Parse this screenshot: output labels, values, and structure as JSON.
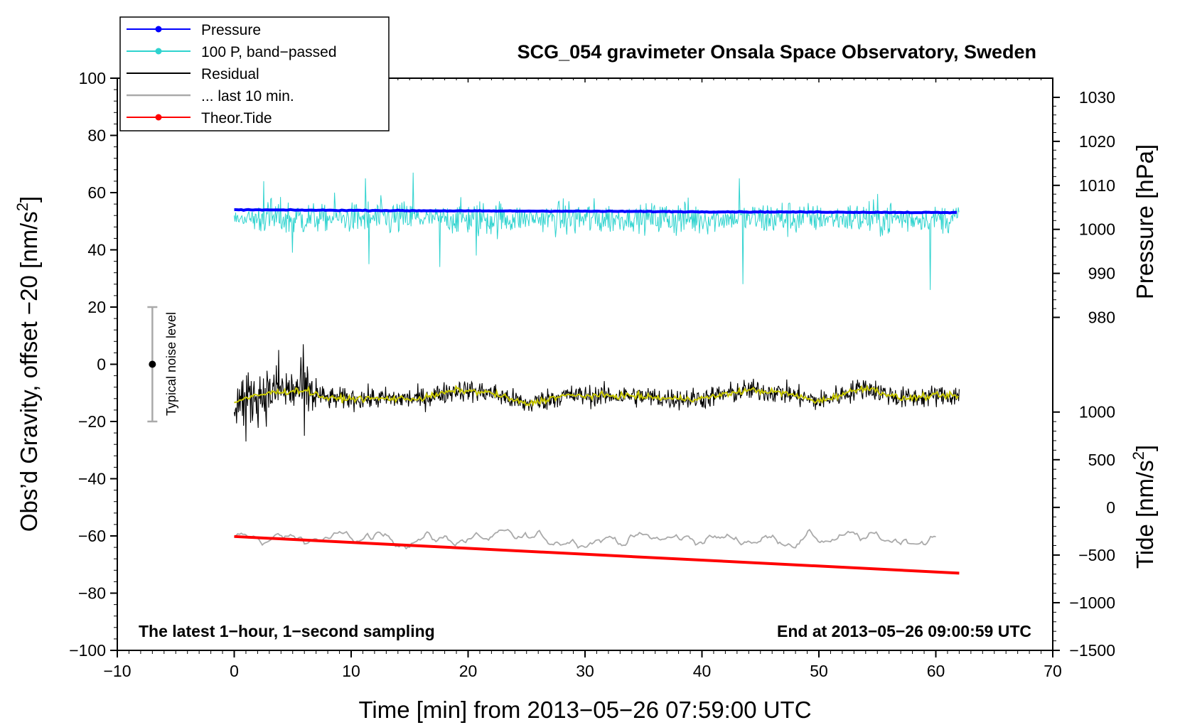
{
  "chart_data": {
    "type": "line",
    "title": "SCG_054 gravimeter Onsala Space Observatory, Sweden",
    "xlabel": "Time [min] from 2013−05−26 07:59:00 UTC",
    "ylabel_left": "Obs’d Gravity, offset −20 [nm/s",
    "ylabel_left_unit_sup": "2",
    "ylabel_left_close": "]",
    "ylabel_right_pressure": "Pressure [hPa]",
    "ylabel_right_tide": "Tide [nm/s",
    "ylabel_right_tide_sup": "2",
    "ylabel_right_tide_close": "]",
    "xlim": [
      -10,
      70
    ],
    "ylim_left": [
      -100,
      100
    ],
    "x_ticks": [
      "−10",
      "0",
      "10",
      "20",
      "30",
      "40",
      "50",
      "60",
      "70"
    ],
    "x_tick_values": [
      -10,
      0,
      10,
      20,
      30,
      40,
      50,
      60,
      70
    ],
    "y_left_ticks": [
      "100",
      "80",
      "60",
      "40",
      "20",
      "0",
      "−20",
      "−40",
      "−60",
      "−80",
      "−100"
    ],
    "y_left_tick_values": [
      100,
      80,
      60,
      40,
      20,
      0,
      -20,
      -40,
      -60,
      -80,
      -100
    ],
    "pressure_axis": {
      "ticks": [
        "1030",
        "1020",
        "1010",
        "1000",
        "990",
        "980"
      ],
      "tick_values": [
        1030,
        1020,
        1010,
        1000,
        990,
        980
      ],
      "gravity_equiv": [
        [
          1030,
          93.3
        ],
        [
          980,
          16.4
        ]
      ]
    },
    "tide_axis": {
      "ticks": [
        "1000",
        "500",
        "0",
        "−500",
        "−1000",
        "−1500"
      ],
      "tick_values": [
        1000,
        500,
        0,
        -500,
        -1000,
        -1500
      ],
      "gravity_equiv": [
        [
          1000,
          -16.7
        ],
        [
          -1500,
          -100
        ]
      ]
    },
    "legend": [
      {
        "label": "Pressure",
        "color": "#0000ff",
        "marker": true
      },
      {
        "label": "100 P, band−passed",
        "color": "#2fd3cf",
        "marker": true
      },
      {
        "label": "Residual",
        "color": "#000000",
        "marker": false
      },
      {
        "label": "... last 10 min.",
        "color": "#aaaaaa",
        "marker": false
      },
      {
        "label": "Theor.Tide",
        "color": "#ff0000",
        "marker": true
      }
    ],
    "series": [
      {
        "name": "Pressure",
        "color": "#0000ff",
        "x": [
          0,
          10,
          20,
          30,
          40,
          50,
          62
        ],
        "values": [
          54.0,
          53.8,
          53.6,
          53.5,
          53.3,
          53.2,
          53.0
        ]
      },
      {
        "name": "100 P, band-passed",
        "color": "#2fd3cf",
        "x_range": [
          0,
          62
        ],
        "center": 51,
        "spikes": [
          [
            2.5,
            64
          ],
          [
            3.2,
            58
          ],
          [
            5.0,
            39
          ],
          [
            8.6,
            60
          ],
          [
            11.2,
            65
          ],
          [
            11.5,
            35
          ],
          [
            15.3,
            67
          ],
          [
            17.6,
            34
          ],
          [
            20.7,
            38
          ],
          [
            43.2,
            65
          ],
          [
            43.5,
            28
          ],
          [
            59.5,
            26
          ]
        ]
      },
      {
        "name": "Residual",
        "color": "#000000",
        "x_range": [
          0,
          62
        ],
        "center": -11,
        "extremes": [
          [
            1.0,
            -27
          ],
          [
            3.8,
            5
          ],
          [
            5.9,
            7
          ],
          [
            6.0,
            -25
          ]
        ]
      },
      {
        "name": "Residual smoothed",
        "color": "#c8c800",
        "x": [
          0,
          3,
          6,
          8,
          12,
          16,
          19,
          22,
          25,
          28,
          31,
          34,
          37,
          40,
          44,
          47,
          50,
          54,
          57,
          60,
          62
        ],
        "values": [
          -13,
          -10,
          -9,
          -12,
          -12,
          -12,
          -9,
          -10,
          -14,
          -11,
          -11,
          -11,
          -12,
          -12,
          -9,
          -10,
          -13,
          -8,
          -12,
          -11,
          -11
        ]
      },
      {
        "name": "... last 10 min.",
        "color": "#aaaaaa",
        "x_range": [
          0,
          60
        ],
        "center": -61,
        "range": [
          -70,
          -56
        ]
      },
      {
        "name": "Theor.Tide",
        "color": "#ff0000",
        "x": [
          0,
          62
        ],
        "values": [
          -60.2,
          -73.0
        ]
      }
    ],
    "noise_level": {
      "label": "Typical noise level",
      "x": -7,
      "center": 0,
      "range": [
        -20,
        20
      ]
    },
    "annotations": {
      "bottom_left": "The latest 1−hour, 1−second sampling",
      "bottom_right": "End at 2013−05−26 09:00:59 UTC"
    }
  }
}
